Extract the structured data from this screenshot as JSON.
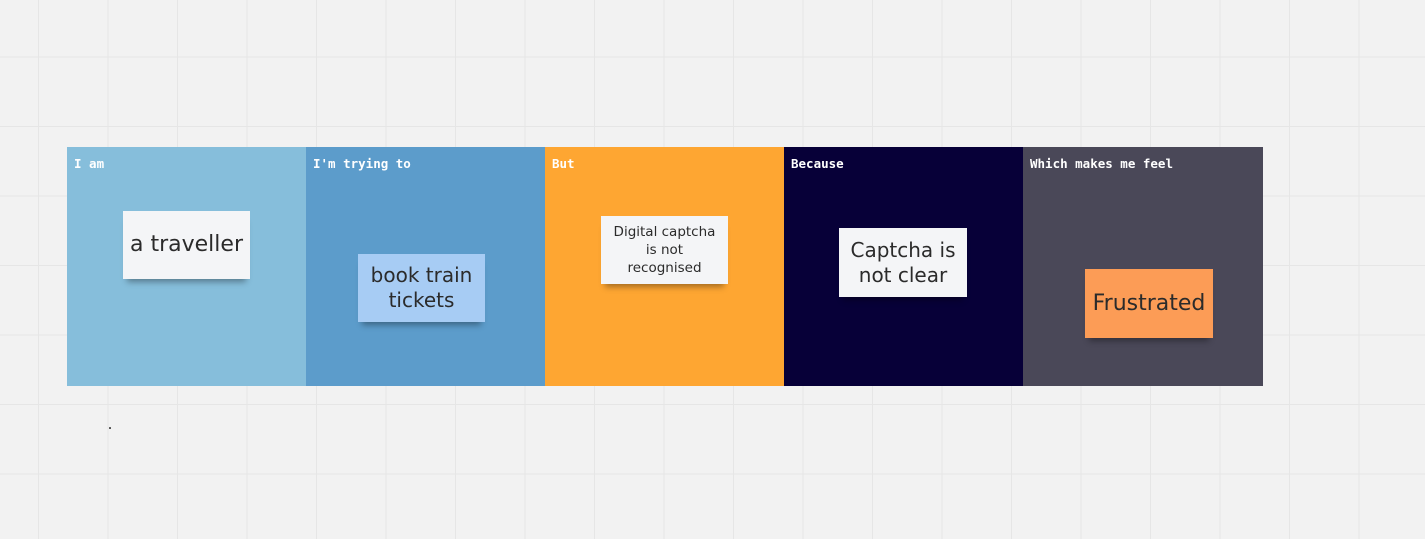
{
  "colors": {
    "canvas": "#f2f2f2",
    "frame_i_am": "#86bedb",
    "frame_trying": "#5c9ccb",
    "frame_but": "#fea632",
    "frame_because": "#070038",
    "frame_feel": "#4a4858",
    "sticky_white": "#f4f5f7",
    "sticky_blue": "#a7ccf4",
    "sticky_orange": "#fc9c56"
  },
  "frames": [
    {
      "label": "I am",
      "note": "a traveller"
    },
    {
      "label": "I'm trying to",
      "note": "book train tickets"
    },
    {
      "label": "But",
      "note": "Digital captcha is not recognised"
    },
    {
      "label": "Because",
      "note": "Captcha is not clear"
    },
    {
      "label": "Which makes me feel",
      "note": "Frustrated"
    }
  ]
}
